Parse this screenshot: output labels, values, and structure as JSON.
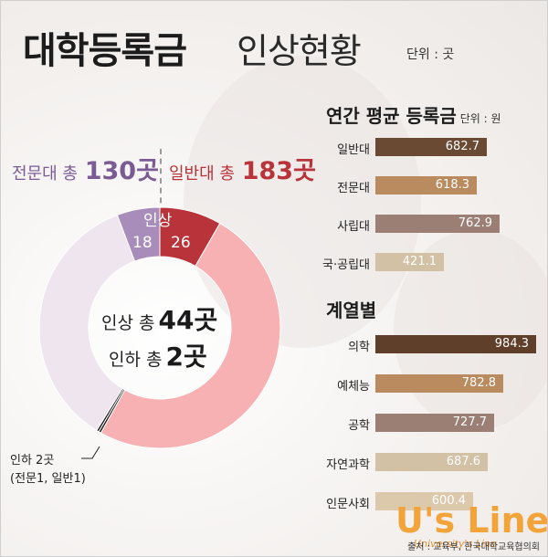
{
  "header": {
    "title": "대학등록금",
    "subtitle": "인상현황",
    "unit": "단위 : 곳"
  },
  "summary": {
    "junior": {
      "label": "전문대 총",
      "value": "130곳"
    },
    "general": {
      "label": "일반대 총",
      "value": "183곳"
    }
  },
  "donut": {
    "raise_label": "인상",
    "raise_junior": "18",
    "raise_general": "26",
    "center_raise_label": "인상 총",
    "center_raise_value": "44곳",
    "center_lower_label": "인하 총",
    "center_lower_value": "2곳",
    "lower_note_1": "인하 2곳",
    "lower_note_2": "(전문1, 일반1)"
  },
  "colors": {
    "junior_raise": "#a88cba",
    "general_raise": "#b8333a",
    "junior_rest": "#eee5ef",
    "general_rest": "#f7b1b3",
    "lowered": "#1c1c1c",
    "junior_text": "#7a5b93",
    "general_text": "#b8333a"
  },
  "chart_data": [
    {
      "type": "pie",
      "title": "대학등록금 인상현황",
      "unit": "곳",
      "segments": [
        {
          "name": "전문대 인상",
          "value": 18
        },
        {
          "name": "일반대 인상",
          "value": 26
        },
        {
          "name": "일반대 기타",
          "value": 156
        },
        {
          "name": "일반대 인하",
          "value": 1
        },
        {
          "name": "전문대 인하",
          "value": 1
        },
        {
          "name": "전문대 기타",
          "value": 111
        }
      ],
      "totals": {
        "전문대": 130,
        "일반대": 183
      }
    },
    {
      "type": "bar",
      "title": "연간 평균 등록금",
      "unit": "단위 : 원",
      "categories": [
        "일반대",
        "전문대",
        "사립대",
        "국·공립대"
      ],
      "values": [
        682.7,
        618.3,
        762.9,
        421.1
      ],
      "colors": [
        "#6b4a34",
        "#b98b5e",
        "#9c7f74",
        "#d2c1a5"
      ]
    },
    {
      "type": "bar",
      "title": "계열별",
      "categories": [
        "의학",
        "예체능",
        "공학",
        "자연과학",
        "인문사회"
      ],
      "values": [
        984.3,
        782.8,
        727.7,
        687.6,
        600.4
      ],
      "colors": [
        "#5f3f2a",
        "#b98b5e",
        "#9c7f74",
        "#d2c1a5",
        "#dcc9ac"
      ]
    }
  ],
  "bars_section": {
    "annual_title": "연간 평균 등록금",
    "annual_unit": "단위 : 원",
    "field_title": "계열별"
  },
  "footer": {
    "source": "출처 : 교육부, 한국대학교육협의회",
    "logo_text": "U's Line",
    "logo_sub": "University's Line"
  }
}
